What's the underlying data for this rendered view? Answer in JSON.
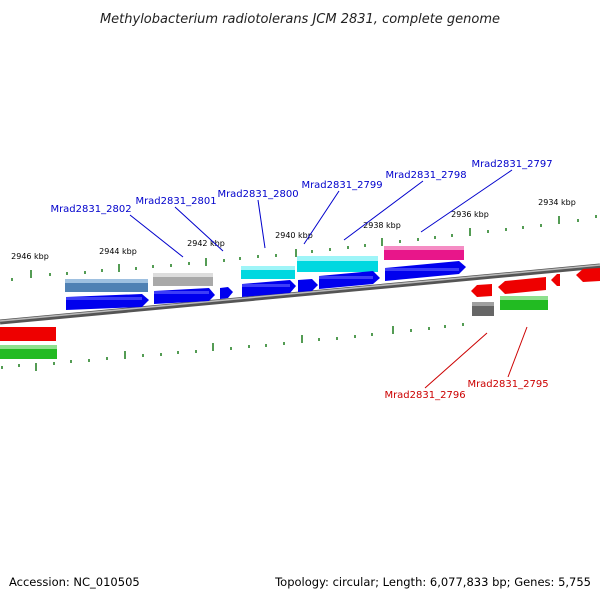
{
  "title": "Methylobacterium radiotolerans JCM 2831, complete genome",
  "footer": {
    "accession": "Accession: NC_010505",
    "summary": "Topology: circular; Length: 6,077,833 bp; Genes: 5,755"
  },
  "scale_ticks": [
    "2946 kbp",
    "2944 kbp",
    "2942 kbp",
    "2940 kbp",
    "2938 kbp",
    "2936 kbp",
    "2934 kbp"
  ],
  "genes_forward_labels": [
    "Mrad2831_2802",
    "Mrad2831_2801",
    "Mrad2831_2800",
    "Mrad2831_2799",
    "Mrad2831_2798",
    "Mrad2831_2797"
  ],
  "genes_reverse_labels": [
    "Mrad2831_2796",
    "Mrad2831_2795"
  ],
  "colors": {
    "forward_label": "#0000cc",
    "reverse_label": "#cc0000",
    "cds_forward": "#0000ee",
    "cds_reverse": "#ee0000",
    "gene_steelblue": "#4f81b4",
    "gene_gray": "#a9a9a9",
    "gene_cyan": "#00d8e0",
    "gene_pink": "#e8168a",
    "gene_green": "#22bb22",
    "gene_darkgray": "#666666",
    "backbone": "#777777",
    "tick_green": "#1a7a1a"
  }
}
